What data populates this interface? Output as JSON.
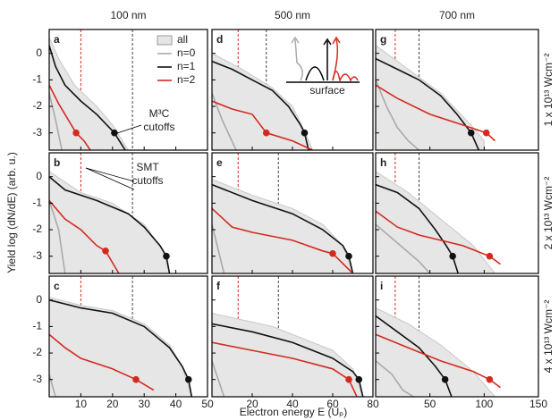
{
  "figure": {
    "xlabel": "Electron energy E (Uₚ)",
    "ylabel": "Yield log (dN/dE) (arb. u.)"
  },
  "chart_data": [
    {
      "type": "line",
      "label": "a",
      "title": "100 nm",
      "xlim": [
        0,
        50
      ],
      "xticks": [
        10,
        20,
        30,
        40,
        50
      ],
      "ylim": [
        -3.65,
        0.9
      ],
      "yticks": [
        0,
        -1,
        -2,
        -3
      ],
      "legend": "upper right",
      "series": [
        {
          "name": "all",
          "style": "area",
          "color": "#e6e6e6",
          "x": [
            0,
            3,
            8,
            15,
            20,
            25
          ],
          "values": [
            0.6,
            -0.2,
            -1.2,
            -2.0,
            -2.7,
            -3.65
          ]
        },
        {
          "name": "n=0",
          "color": "#aaaaaa",
          "x": [
            0,
            2,
            4
          ],
          "values": [
            -1.5,
            -2.5,
            -3.65
          ]
        },
        {
          "name": "n=1",
          "color": "#111111",
          "x": [
            0,
            2,
            5,
            10,
            15,
            20.6,
            24
          ],
          "values": [
            0.3,
            -0.5,
            -1.2,
            -1.8,
            -2.3,
            -3.0,
            -3.65
          ]
        },
        {
          "name": "n=2",
          "color": "#d42a1e",
          "x": [
            0,
            3,
            6,
            8.5,
            11,
            13
          ],
          "values": [
            -1.2,
            -1.9,
            -2.5,
            -3.0,
            -3.3,
            -3.65
          ]
        }
      ],
      "cutoffs": [
        {
          "x": 20.6,
          "y": -3,
          "color": "#111111"
        },
        {
          "x": 8.5,
          "y": -3,
          "color": "#d42a1e"
        }
      ],
      "smt_cutoffs": [
        {
          "x": 10,
          "color": "#d42a1e"
        },
        {
          "x": 26.3,
          "color": "#444444"
        }
      ],
      "annotation": [
        "M³C",
        "cutoffs"
      ]
    },
    {
      "type": "line",
      "label": "b",
      "xlim": [
        0,
        50
      ],
      "xticks": [
        10,
        20,
        30,
        40,
        50
      ],
      "ylim": [
        -3.65,
        0.9
      ],
      "yticks": [
        0,
        -1,
        -2,
        -3
      ],
      "series": [
        {
          "style": "area",
          "color": "#e6e6e6",
          "x": [
            0,
            10,
            20,
            30,
            36,
            38
          ],
          "values": [
            0.2,
            -0.6,
            -1.0,
            -1.8,
            -2.8,
            -3.65
          ]
        },
        {
          "color": "#aaaaaa",
          "x": [
            0,
            3,
            5
          ],
          "values": [
            -0.9,
            -2.0,
            -3.65
          ]
        },
        {
          "color": "#111111",
          "x": [
            0,
            5,
            15,
            25,
            30,
            35,
            37,
            38
          ],
          "values": [
            0.0,
            -0.5,
            -0.9,
            -1.4,
            -1.9,
            -2.6,
            -3.0,
            -3.65
          ]
        },
        {
          "color": "#d42a1e",
          "x": [
            0,
            5,
            10,
            15,
            17.8,
            22
          ],
          "values": [
            -0.9,
            -1.6,
            -2.0,
            -2.6,
            -2.8,
            -3.65
          ]
        }
      ],
      "cutoffs": [
        {
          "x": 37,
          "y": -3,
          "color": "#111111"
        },
        {
          "x": 17.8,
          "y": -2.8,
          "color": "#d42a1e"
        }
      ],
      "smt_cutoffs": [
        {
          "x": 10,
          "color": "#d42a1e"
        },
        {
          "x": 26.3,
          "color": "#444444"
        }
      ],
      "annotation": [
        "SMT",
        "cutoffs"
      ]
    },
    {
      "type": "line",
      "label": "c",
      "xlim": [
        0,
        50
      ],
      "xticks": [
        10,
        20,
        30,
        40,
        50
      ],
      "ylim": [
        -3.65,
        0.9
      ],
      "yticks": [
        0,
        -1,
        -2,
        -3
      ],
      "series": [
        {
          "style": "area",
          "color": "#e6e6e6",
          "x": [
            0,
            10,
            20,
            30,
            38,
            42,
            45
          ],
          "values": [
            0.1,
            -0.2,
            -0.4,
            -0.9,
            -1.7,
            -2.5,
            -3.65
          ]
        },
        {
          "color": "#aaaaaa",
          "x": [
            0,
            2
          ],
          "values": [
            -2.8,
            -3.65
          ]
        },
        {
          "color": "#111111",
          "x": [
            0,
            10,
            20,
            30,
            38,
            42,
            44,
            45
          ],
          "values": [
            0.0,
            -0.3,
            -0.5,
            -1.0,
            -1.8,
            -2.5,
            -3.0,
            -3.65
          ]
        },
        {
          "color": "#d42a1e",
          "x": [
            0,
            5,
            10,
            20,
            27.4,
            33
          ],
          "values": [
            -1.3,
            -1.8,
            -2.2,
            -2.6,
            -3.0,
            -3.4
          ]
        }
      ],
      "cutoffs": [
        {
          "x": 44,
          "y": -3,
          "color": "#111111"
        },
        {
          "x": 27.4,
          "y": -3,
          "color": "#d42a1e"
        }
      ],
      "smt_cutoffs": [
        {
          "x": 10,
          "color": "#d42a1e"
        },
        {
          "x": 26.3,
          "color": "#444444"
        }
      ]
    },
    {
      "type": "line",
      "label": "d",
      "title": "500 nm",
      "xlim": [
        0,
        80
      ],
      "xticks": [
        20,
        40,
        60,
        80
      ],
      "ylim": [
        -3.65,
        0.9
      ],
      "yticks": [
        0,
        -1,
        -2,
        -3
      ],
      "series": [
        {
          "style": "area",
          "color": "#e6e6e6",
          "x": [
            0,
            15,
            30,
            40,
            47,
            50
          ],
          "values": [
            0.0,
            -0.6,
            -1.3,
            -2.0,
            -3.1,
            -3.65
          ]
        },
        {
          "color": "#aaaaaa",
          "x": [
            0,
            5,
            12
          ],
          "values": [
            -1.5,
            -2.5,
            -3.65
          ]
        },
        {
          "color": "#111111",
          "x": [
            0,
            10,
            20,
            30,
            38,
            44,
            46,
            48
          ],
          "values": [
            -0.3,
            -0.6,
            -1.0,
            -1.4,
            -2.0,
            -2.7,
            -3.0,
            -3.65
          ]
        },
        {
          "color": "#d42a1e",
          "x": [
            0,
            10,
            20,
            27,
            40,
            50
          ],
          "values": [
            -1.8,
            -2.1,
            -2.3,
            -3.0,
            -3.3,
            -3.65
          ]
        }
      ],
      "cutoffs": [
        {
          "x": 46,
          "y": -3,
          "color": "#111111"
        },
        {
          "x": 27,
          "y": -3,
          "color": "#d42a1e"
        }
      ],
      "smt_cutoffs": [
        {
          "x": 13,
          "color": "#d42a1e"
        },
        {
          "x": 27,
          "color": "#444444"
        }
      ],
      "inset_label": "surface"
    },
    {
      "type": "line",
      "label": "e",
      "xlim": [
        0,
        80
      ],
      "xticks": [
        20,
        40,
        60,
        80
      ],
      "ylim": [
        -3.65,
        0.9
      ],
      "yticks": [
        0,
        -1,
        -2,
        -3
      ],
      "series": [
        {
          "style": "area",
          "color": "#e6e6e6",
          "x": [
            0,
            20,
            40,
            55,
            65,
            70
          ],
          "values": [
            -0.1,
            -0.7,
            -1.2,
            -1.8,
            -2.6,
            -3.65
          ]
        },
        {
          "color": "#aaaaaa",
          "x": [
            0,
            6
          ],
          "values": [
            -1.8,
            -3.65
          ]
        },
        {
          "color": "#111111",
          "x": [
            0,
            20,
            40,
            55,
            65,
            68,
            70
          ],
          "values": [
            -0.3,
            -0.9,
            -1.4,
            -2.0,
            -2.6,
            -3.0,
            -3.65
          ]
        },
        {
          "color": "#d42a1e",
          "x": [
            0,
            10,
            20,
            40,
            55,
            60,
            70
          ],
          "values": [
            -1.2,
            -1.9,
            -2.1,
            -2.4,
            -2.8,
            -2.9,
            -3.65
          ]
        }
      ],
      "cutoffs": [
        {
          "x": 68,
          "y": -3,
          "color": "#111111"
        },
        {
          "x": 60,
          "y": -2.9,
          "color": "#d42a1e"
        }
      ],
      "smt_cutoffs": [
        {
          "x": 13,
          "color": "#d42a1e"
        },
        {
          "x": 33,
          "color": "#444444"
        }
      ]
    },
    {
      "type": "line",
      "label": "f",
      "xlim": [
        0,
        80
      ],
      "xticks": [
        20,
        40,
        60,
        80
      ],
      "ylim": [
        -3.65,
        0.9
      ],
      "yticks": [
        0,
        -1,
        -2,
        -3
      ],
      "series": [
        {
          "style": "area",
          "color": "#e6e6e6",
          "x": [
            0,
            30,
            60,
            70,
            75
          ],
          "values": [
            -0.5,
            -1.0,
            -1.9,
            -2.6,
            -3.65
          ]
        },
        {
          "color": "#aaaaaa",
          "x": [
            0,
            6
          ],
          "values": [
            -2.3,
            -3.65
          ]
        },
        {
          "color": "#111111",
          "x": [
            0,
            20,
            40,
            60,
            70,
            73,
            75
          ],
          "values": [
            -0.9,
            -1.2,
            -1.6,
            -2.2,
            -2.7,
            -3.0,
            -3.65
          ]
        },
        {
          "color": "#d42a1e",
          "x": [
            0,
            20,
            40,
            60,
            68,
            72
          ],
          "values": [
            -1.6,
            -1.9,
            -2.2,
            -2.6,
            -3.0,
            -3.65
          ]
        }
      ],
      "cutoffs": [
        {
          "x": 73,
          "y": -3,
          "color": "#111111"
        },
        {
          "x": 68,
          "y": -3,
          "color": "#d42a1e"
        }
      ],
      "smt_cutoffs": [
        {
          "x": 13,
          "color": "#d42a1e"
        },
        {
          "x": 33,
          "color": "#444444"
        }
      ]
    },
    {
      "type": "line",
      "label": "g",
      "title": "700 nm",
      "side_label": "1 x 10¹³ Wcm⁻²",
      "xlim": [
        0,
        150
      ],
      "xticks": [
        50,
        100,
        150
      ],
      "ylim": [
        -3.65,
        0.9
      ],
      "yticks": [
        0,
        -1,
        -2,
        -3
      ],
      "series": [
        {
          "style": "area",
          "color": "#e6e6e6",
          "x": [
            0,
            30,
            60,
            90,
            100
          ],
          "values": [
            0.3,
            -0.6,
            -1.5,
            -2.8,
            -3.3
          ]
        },
        {
          "color": "#aaaaaa",
          "x": [
            0,
            10,
            20,
            30,
            40
          ],
          "values": [
            -1.0,
            -2.0,
            -2.8,
            -3.3,
            -3.65
          ]
        },
        {
          "color": "#111111",
          "x": [
            0,
            20,
            40,
            60,
            75,
            88,
            95
          ],
          "values": [
            -0.2,
            -0.6,
            -1.0,
            -1.6,
            -2.3,
            -3.0,
            -3.65
          ]
        },
        {
          "color": "#d42a1e",
          "x": [
            0,
            20,
            50,
            80,
            102,
            110
          ],
          "values": [
            -1.2,
            -1.7,
            -2.3,
            -2.7,
            -3.0,
            -3.3
          ]
        }
      ],
      "cutoffs": [
        {
          "x": 88,
          "y": -3,
          "color": "#111111"
        },
        {
          "x": 102,
          "y": -3,
          "color": "#d42a1e"
        }
      ],
      "smt_cutoffs": [
        {
          "x": 18,
          "color": "#d42a1e"
        },
        {
          "x": 40,
          "color": "#444444"
        }
      ]
    },
    {
      "type": "line",
      "label": "h",
      "side_label": "2 x 10¹³ Wcm⁻²",
      "xlim": [
        0,
        150
      ],
      "xticks": [
        50,
        100,
        150
      ],
      "ylim": [
        -3.65,
        0.9
      ],
      "yticks": [
        0,
        -1,
        -2,
        -3
      ],
      "series": [
        {
          "style": "area",
          "color": "#e6e6e6",
          "x": [
            0,
            30,
            60,
            90,
            110
          ],
          "values": [
            0.2,
            -0.6,
            -1.6,
            -2.6,
            -3.65
          ]
        },
        {
          "color": "#aaaaaa",
          "x": [
            0,
            20,
            40,
            50
          ],
          "values": [
            -1.8,
            -2.5,
            -3.2,
            -3.65
          ]
        },
        {
          "color": "#111111",
          "x": [
            0,
            20,
            40,
            55,
            65,
            71,
            76
          ],
          "values": [
            -0.3,
            -0.6,
            -1.2,
            -2.0,
            -2.6,
            -3.0,
            -3.65
          ]
        },
        {
          "color": "#d42a1e",
          "x": [
            0,
            20,
            40,
            60,
            80,
            105,
            115
          ],
          "values": [
            -1.3,
            -1.9,
            -2.2,
            -2.4,
            -2.6,
            -3.0,
            -3.3
          ]
        }
      ],
      "cutoffs": [
        {
          "x": 71,
          "y": -3,
          "color": "#111111"
        },
        {
          "x": 105,
          "y": -3,
          "color": "#d42a1e"
        }
      ],
      "smt_cutoffs": [
        {
          "x": 18,
          "color": "#d42a1e"
        },
        {
          "x": 40,
          "color": "#444444"
        }
      ]
    },
    {
      "type": "line",
      "label": "i",
      "side_label": "4 x 10¹³ Wcm⁻²",
      "xlim": [
        0,
        150
      ],
      "xticks": [
        50,
        100,
        150
      ],
      "ylim": [
        -3.65,
        0.9
      ],
      "yticks": [
        0,
        -1,
        -2,
        -3
      ],
      "series": [
        {
          "style": "area",
          "color": "#e6e6e6",
          "x": [
            0,
            30,
            60,
            90,
            110
          ],
          "values": [
            -0.3,
            -0.9,
            -1.7,
            -2.7,
            -3.65
          ]
        },
        {
          "color": "#aaaaaa",
          "x": [
            0,
            15,
            25,
            35
          ],
          "values": [
            -2.3,
            -2.8,
            -3.4,
            -3.65
          ]
        },
        {
          "color": "#111111",
          "x": [
            0,
            20,
            40,
            55,
            64,
            70
          ],
          "values": [
            -0.6,
            -1.2,
            -1.8,
            -2.5,
            -3.0,
            -3.65
          ]
        },
        {
          "color": "#d42a1e",
          "x": [
            0,
            30,
            60,
            90,
            105,
            115
          ],
          "values": [
            -1.3,
            -1.8,
            -2.3,
            -2.7,
            -3.0,
            -3.3
          ]
        }
      ],
      "cutoffs": [
        {
          "x": 64,
          "y": -3,
          "color": "#111111"
        },
        {
          "x": 105,
          "y": -3,
          "color": "#d42a1e"
        }
      ],
      "smt_cutoffs": [
        {
          "x": 18,
          "color": "#d42a1e"
        },
        {
          "x": 40,
          "color": "#444444"
        }
      ]
    }
  ]
}
